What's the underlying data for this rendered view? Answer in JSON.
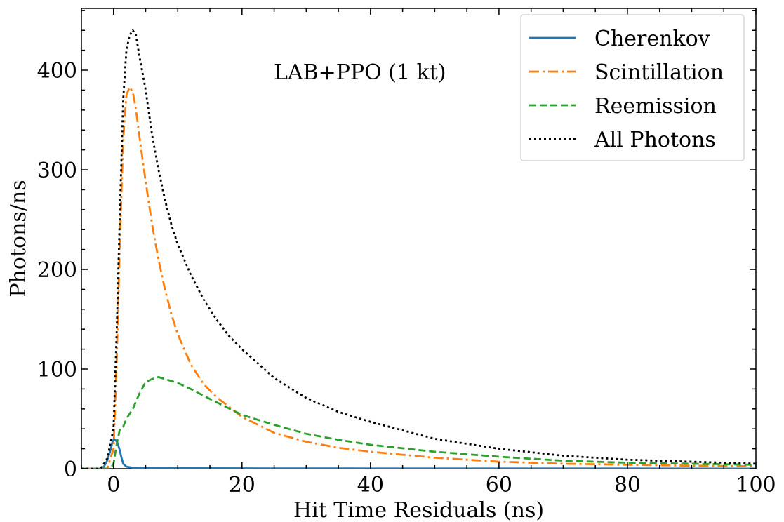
{
  "chart_data": {
    "type": "line",
    "title": "",
    "xlabel": "Hit Time Residuals (ns)",
    "ylabel": "Photons/ns",
    "xlim": [
      -5,
      100
    ],
    "ylim": [
      0,
      462
    ],
    "xticks": [
      "0",
      "20",
      "40",
      "60",
      "80",
      "100"
    ],
    "yticks": [
      "0",
      "100",
      "200",
      "300",
      "400"
    ],
    "annotation": "LAB+PPO (1 kt)",
    "legend_position": "top-right",
    "grid": false,
    "series": [
      {
        "name": "Cherenkov",
        "color": "#1f77b4",
        "dash": "solid",
        "x": [
          -5,
          -2,
          -1.5,
          -1,
          -0.5,
          -0.2,
          0,
          0.3,
          0.6,
          0.9,
          1.2,
          1.5,
          2,
          3,
          5,
          10,
          20,
          40,
          100
        ],
        "y": [
          0,
          0,
          2,
          8,
          18,
          26,
          29,
          29,
          26,
          20,
          12,
          5,
          2,
          1,
          0.8,
          0.5,
          0.3,
          0.2,
          0.1
        ]
      },
      {
        "name": "Scintillation",
        "color": "#ff7f0e",
        "dash": "dashdot",
        "x": [
          -5,
          -1,
          0,
          0.5,
          1,
          1.5,
          2,
          2.5,
          3,
          3.5,
          4,
          5,
          6,
          7,
          8,
          9,
          10,
          12,
          14,
          16,
          18,
          20,
          25,
          30,
          35,
          40,
          50,
          60,
          70,
          80,
          90,
          100
        ],
        "y": [
          0,
          0,
          20,
          110,
          230,
          330,
          375,
          383,
          378,
          360,
          335,
          288,
          245,
          210,
          180,
          155,
          135,
          105,
          85,
          72,
          62,
          52,
          36,
          27,
          21,
          17,
          11,
          7,
          5,
          4,
          3,
          2.5
        ]
      },
      {
        "name": "Reemission",
        "color": "#2ca02c",
        "dash": "dashed",
        "x": [
          -5,
          -0.5,
          0,
          0.5,
          1,
          1.5,
          2,
          3,
          4,
          5,
          6,
          7,
          8,
          10,
          12,
          15,
          20,
          25,
          30,
          35,
          40,
          50,
          60,
          70,
          80,
          90,
          100
        ],
        "y": [
          0,
          0,
          5,
          25,
          40,
          42,
          50,
          60,
          75,
          87,
          90,
          92,
          90,
          86,
          80,
          70,
          54,
          44,
          35,
          29,
          24,
          17,
          12,
          8,
          6,
          5,
          4
        ]
      },
      {
        "name": "All Photons",
        "color": "#000000",
        "dash": "dotted",
        "x": [
          -5,
          -2,
          -1,
          0,
          0.5,
          1,
          1.5,
          2,
          2.5,
          3,
          3.5,
          4,
          5,
          6,
          7,
          8,
          9,
          10,
          12,
          14,
          16,
          18,
          20,
          25,
          30,
          35,
          40,
          50,
          60,
          70,
          80,
          90,
          100
        ],
        "y": [
          0,
          0,
          10,
          40,
          140,
          260,
          370,
          420,
          435,
          440,
          435,
          415,
          380,
          335,
          300,
          270,
          245,
          225,
          195,
          170,
          150,
          133,
          120,
          91,
          71,
          57,
          47,
          30,
          20,
          13,
          9,
          7,
          5
        ]
      }
    ]
  }
}
